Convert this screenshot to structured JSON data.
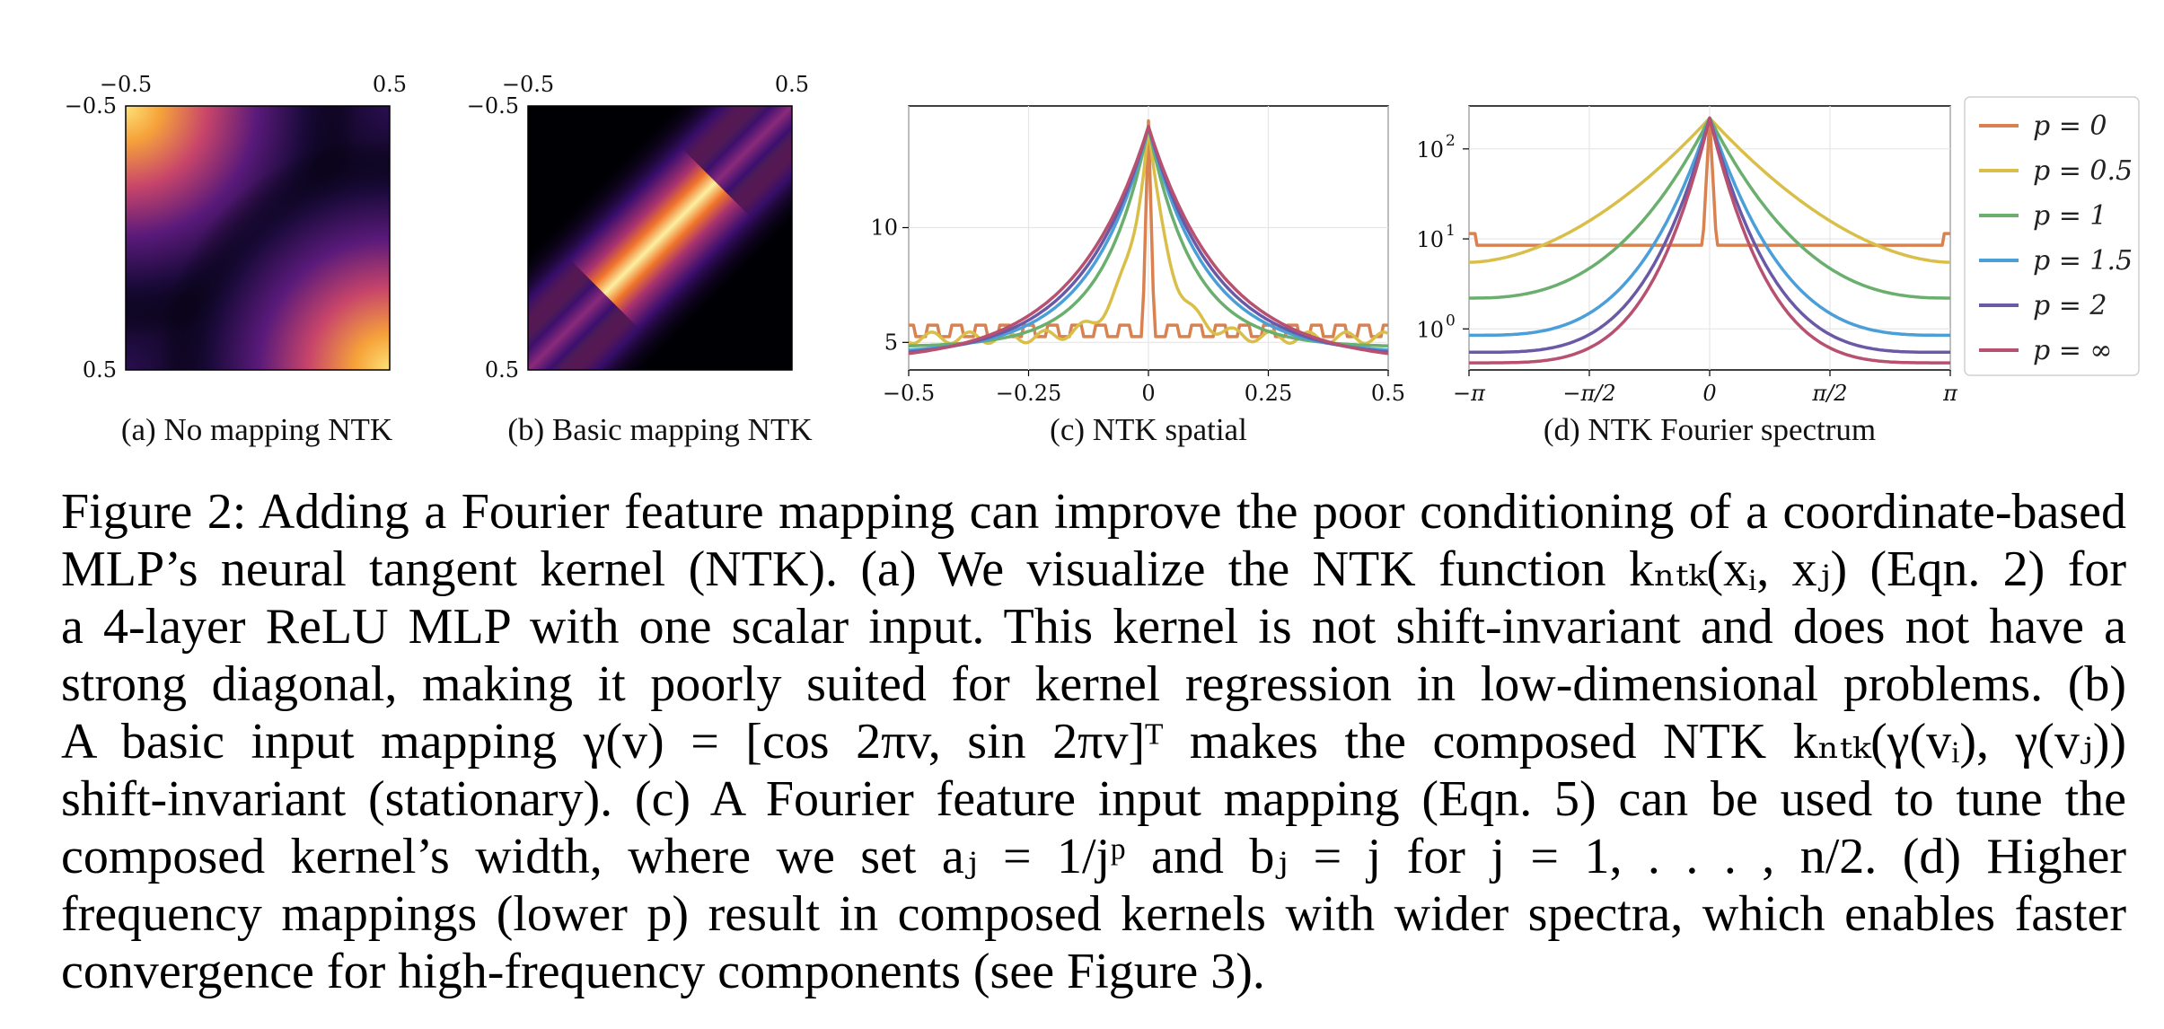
{
  "colors": {
    "p0": "#d9824f",
    "p05": "#d9bf4a",
    "p1": "#6aaf6e",
    "p15": "#4a9fd9",
    "p2": "#6a5aa6",
    "pinf": "#b8506f"
  },
  "subplots": {
    "a": {
      "label": "(a) No mapping NTK",
      "ticks_top": [
        "−0.5",
        "0.5"
      ],
      "ticks_left": [
        "−0.5",
        "0.5"
      ]
    },
    "b": {
      "label": "(b) Basic mapping NTK",
      "ticks_top": [
        "−0.5",
        "0.5"
      ],
      "ticks_left": [
        "−0.5",
        "0.5"
      ]
    },
    "c": {
      "label": "(c) NTK spatial"
    },
    "d": {
      "label": "(d) NTK Fourier spectrum"
    }
  },
  "chart_data": [
    {
      "type": "heatmap",
      "title": "",
      "xlim": [
        -0.5,
        0.5
      ],
      "ylim": [
        -0.5,
        0.5
      ],
      "x_ticks": [
        -0.5,
        0.5
      ],
      "y_ticks": [
        -0.5,
        0.5
      ],
      "colormap": "inferno",
      "description_values": "bright at (-0.5,-0.5) and (0.5,0.5) corners, dark elsewhere"
    },
    {
      "type": "heatmap",
      "title": "",
      "xlim": [
        -0.5,
        0.5
      ],
      "ylim": [
        -0.5,
        0.5
      ],
      "x_ticks": [
        -0.5,
        0.5
      ],
      "y_ticks": [
        -0.5,
        0.5
      ],
      "colormap": "inferno",
      "description_values": "bright main diagonal band, bright off-diagonal corners"
    },
    {
      "type": "line",
      "title": "",
      "xlim": [
        -0.5,
        0.5
      ],
      "ylim": [
        3.8,
        15.3
      ],
      "x_ticks": [
        "−0.5",
        "−0.25",
        "0",
        "0.25",
        "0.5"
      ],
      "y_ticks": [
        "5",
        "10"
      ],
      "y_tick_values": [
        5,
        10
      ],
      "x_tick_values": [
        -0.5,
        -0.25,
        0,
        0.25,
        0.5
      ],
      "grid": true,
      "series": [
        {
          "key": "p0",
          "peak": 14.4,
          "base": 5.5
        },
        {
          "key": "p05",
          "peak": 14.4,
          "base": 5.2
        },
        {
          "key": "p1",
          "peak": 14.4,
          "base": 4.8
        },
        {
          "key": "p15",
          "peak": 14.4,
          "base": 4.5
        },
        {
          "key": "p2",
          "peak": 14.4,
          "base": 4.3
        },
        {
          "key": "pinf",
          "peak": 14.4,
          "base": 4.1
        }
      ]
    },
    {
      "type": "line",
      "title": "",
      "yscale": "log",
      "xlim": [
        -3.1416,
        3.1416
      ],
      "ylim": [
        0.35,
        300
      ],
      "x_ticks": [
        "−π",
        "−π/2",
        "0",
        "π/2",
        "π"
      ],
      "x_tick_values": [
        -3.1416,
        -1.5708,
        0,
        1.5708,
        3.1416
      ],
      "y_ticks": [
        "10",
        "10",
        "10"
      ],
      "y_tick_exponents": [
        "0",
        "1",
        "2"
      ],
      "y_tick_values": [
        1,
        10,
        100
      ],
      "grid": true,
      "legend": "right",
      "series": [
        {
          "key": "p0",
          "name": "p = 0",
          "peak": 220,
          "edge": 8.5
        },
        {
          "key": "p05",
          "name": "p = 0.5",
          "peak": 220,
          "edge": 5.5
        },
        {
          "key": "p1",
          "name": "p = 1",
          "peak": 220,
          "edge": 2.2
        },
        {
          "key": "p15",
          "name": "p = 1.5",
          "peak": 220,
          "edge": 0.85
        },
        {
          "key": "p2",
          "name": "p = 2",
          "peak": 220,
          "edge": 0.55
        },
        {
          "key": "pinf",
          "name": "p = ∞",
          "peak": 220,
          "edge": 0.42
        }
      ]
    }
  ],
  "caption": {
    "lines": [
      "Figure 2: Adding a Fourier feature mapping can improve the poor conditioning of a coordinate-based",
      "MLP’s neural tangent kernel (NTK). (a) We visualize the NTK function kₙₜₖ(xᵢ, xⱼ) (Eqn. 2) for",
      "a 4-layer ReLU MLP with one scalar input. This kernel is not shift-invariant and does not have a",
      "strong diagonal, making it poorly suited for kernel regression in low-dimensional problems. (b)",
      "A basic input mapping γ(v) = [cos 2πv, sin 2πv]ᵀ makes the composed NTK kₙₜₖ(γ(vᵢ), γ(vⱼ))",
      "shift-invariant (stationary). (c) A Fourier feature input mapping (Eqn. 5) can be used to tune the",
      "composed kernel’s width, where we set aⱼ = 1/jᵖ and bⱼ = j for j = 1, . . . , n/2. (d) Higher",
      "frequency mappings (lower p) result in composed kernels with wider spectra, which enables faster",
      "convergence for high-frequency components (see Figure 3)."
    ]
  }
}
